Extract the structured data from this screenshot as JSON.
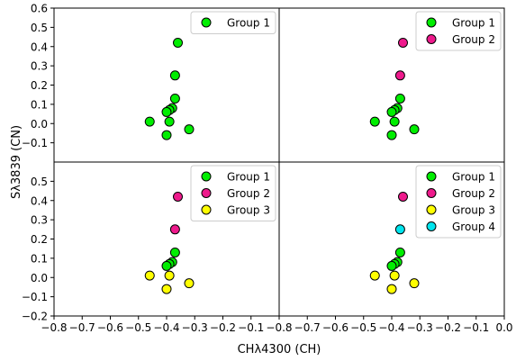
{
  "chart_data": {
    "type": "scatter",
    "layout": "2x2 grid of panels sharing axes",
    "xlabel": "CHλ4300 (CH)",
    "ylabel": "Sλ3839 (CN)",
    "xlim": [
      -0.8,
      0.0
    ],
    "ylim": [
      -0.2,
      0.6
    ],
    "x_ticks": [
      "−0.8",
      "−0.7",
      "−0.6",
      "−0.5",
      "−0.4",
      "−0.3",
      "−0.2",
      "−0.1",
      "0.0"
    ],
    "x_ticks_left": [
      "−0.8",
      "−0.7",
      "−0.6",
      "−0.5",
      "−0.4",
      "−0.3",
      "−0.2",
      "−0.1"
    ],
    "y_ticks_top": [
      "0.6",
      "0.5",
      "0.4",
      "0.3",
      "0.2",
      "0.1",
      "0.0",
      "−0.1"
    ],
    "y_ticks_bottom": [
      "0.2",
      "0.1",
      "0.0",
      "−0.1",
      "−0.2",
      "0.3",
      "0.4",
      "0.5"
    ],
    "grid": false,
    "legend_position": "top-right",
    "group_colors": {
      "Group 1": "#00ee00",
      "Group 2": "#ee1a8c",
      "Group 3": "#ffff00",
      "Group 4": "#00e5ee"
    },
    "points": [
      {
        "x": -0.36,
        "y": 0.42
      },
      {
        "x": -0.37,
        "y": 0.25
      },
      {
        "x": -0.37,
        "y": 0.13
      },
      {
        "x": -0.38,
        "y": 0.08
      },
      {
        "x": -0.39,
        "y": 0.07
      },
      {
        "x": -0.4,
        "y": 0.06
      },
      {
        "x": -0.39,
        "y": 0.01
      },
      {
        "x": -0.46,
        "y": 0.01
      },
      {
        "x": -0.4,
        "y": -0.06
      },
      {
        "x": -0.32,
        "y": -0.03
      }
    ],
    "panels": [
      {
        "legend": [
          "Group 1"
        ],
        "groups": [
          "Group 1",
          "Group 1",
          "Group 1",
          "Group 1",
          "Group 1",
          "Group 1",
          "Group 1",
          "Group 1",
          "Group 1",
          "Group 1"
        ]
      },
      {
        "legend": [
          "Group 1",
          "Group 2"
        ],
        "groups": [
          "Group 2",
          "Group 2",
          "Group 1",
          "Group 1",
          "Group 1",
          "Group 1",
          "Group 1",
          "Group 1",
          "Group 1",
          "Group 1"
        ]
      },
      {
        "legend": [
          "Group 1",
          "Group 2",
          "Group 3"
        ],
        "groups": [
          "Group 2",
          "Group 2",
          "Group 1",
          "Group 1",
          "Group 1",
          "Group 1",
          "Group 3",
          "Group 3",
          "Group 3",
          "Group 3"
        ]
      },
      {
        "legend": [
          "Group 1",
          "Group 2",
          "Group 3",
          "Group 4"
        ],
        "groups": [
          "Group 2",
          "Group 4",
          "Group 1",
          "Group 1",
          "Group 1",
          "Group 1",
          "Group 3",
          "Group 3",
          "Group 3",
          "Group 3"
        ]
      }
    ]
  }
}
